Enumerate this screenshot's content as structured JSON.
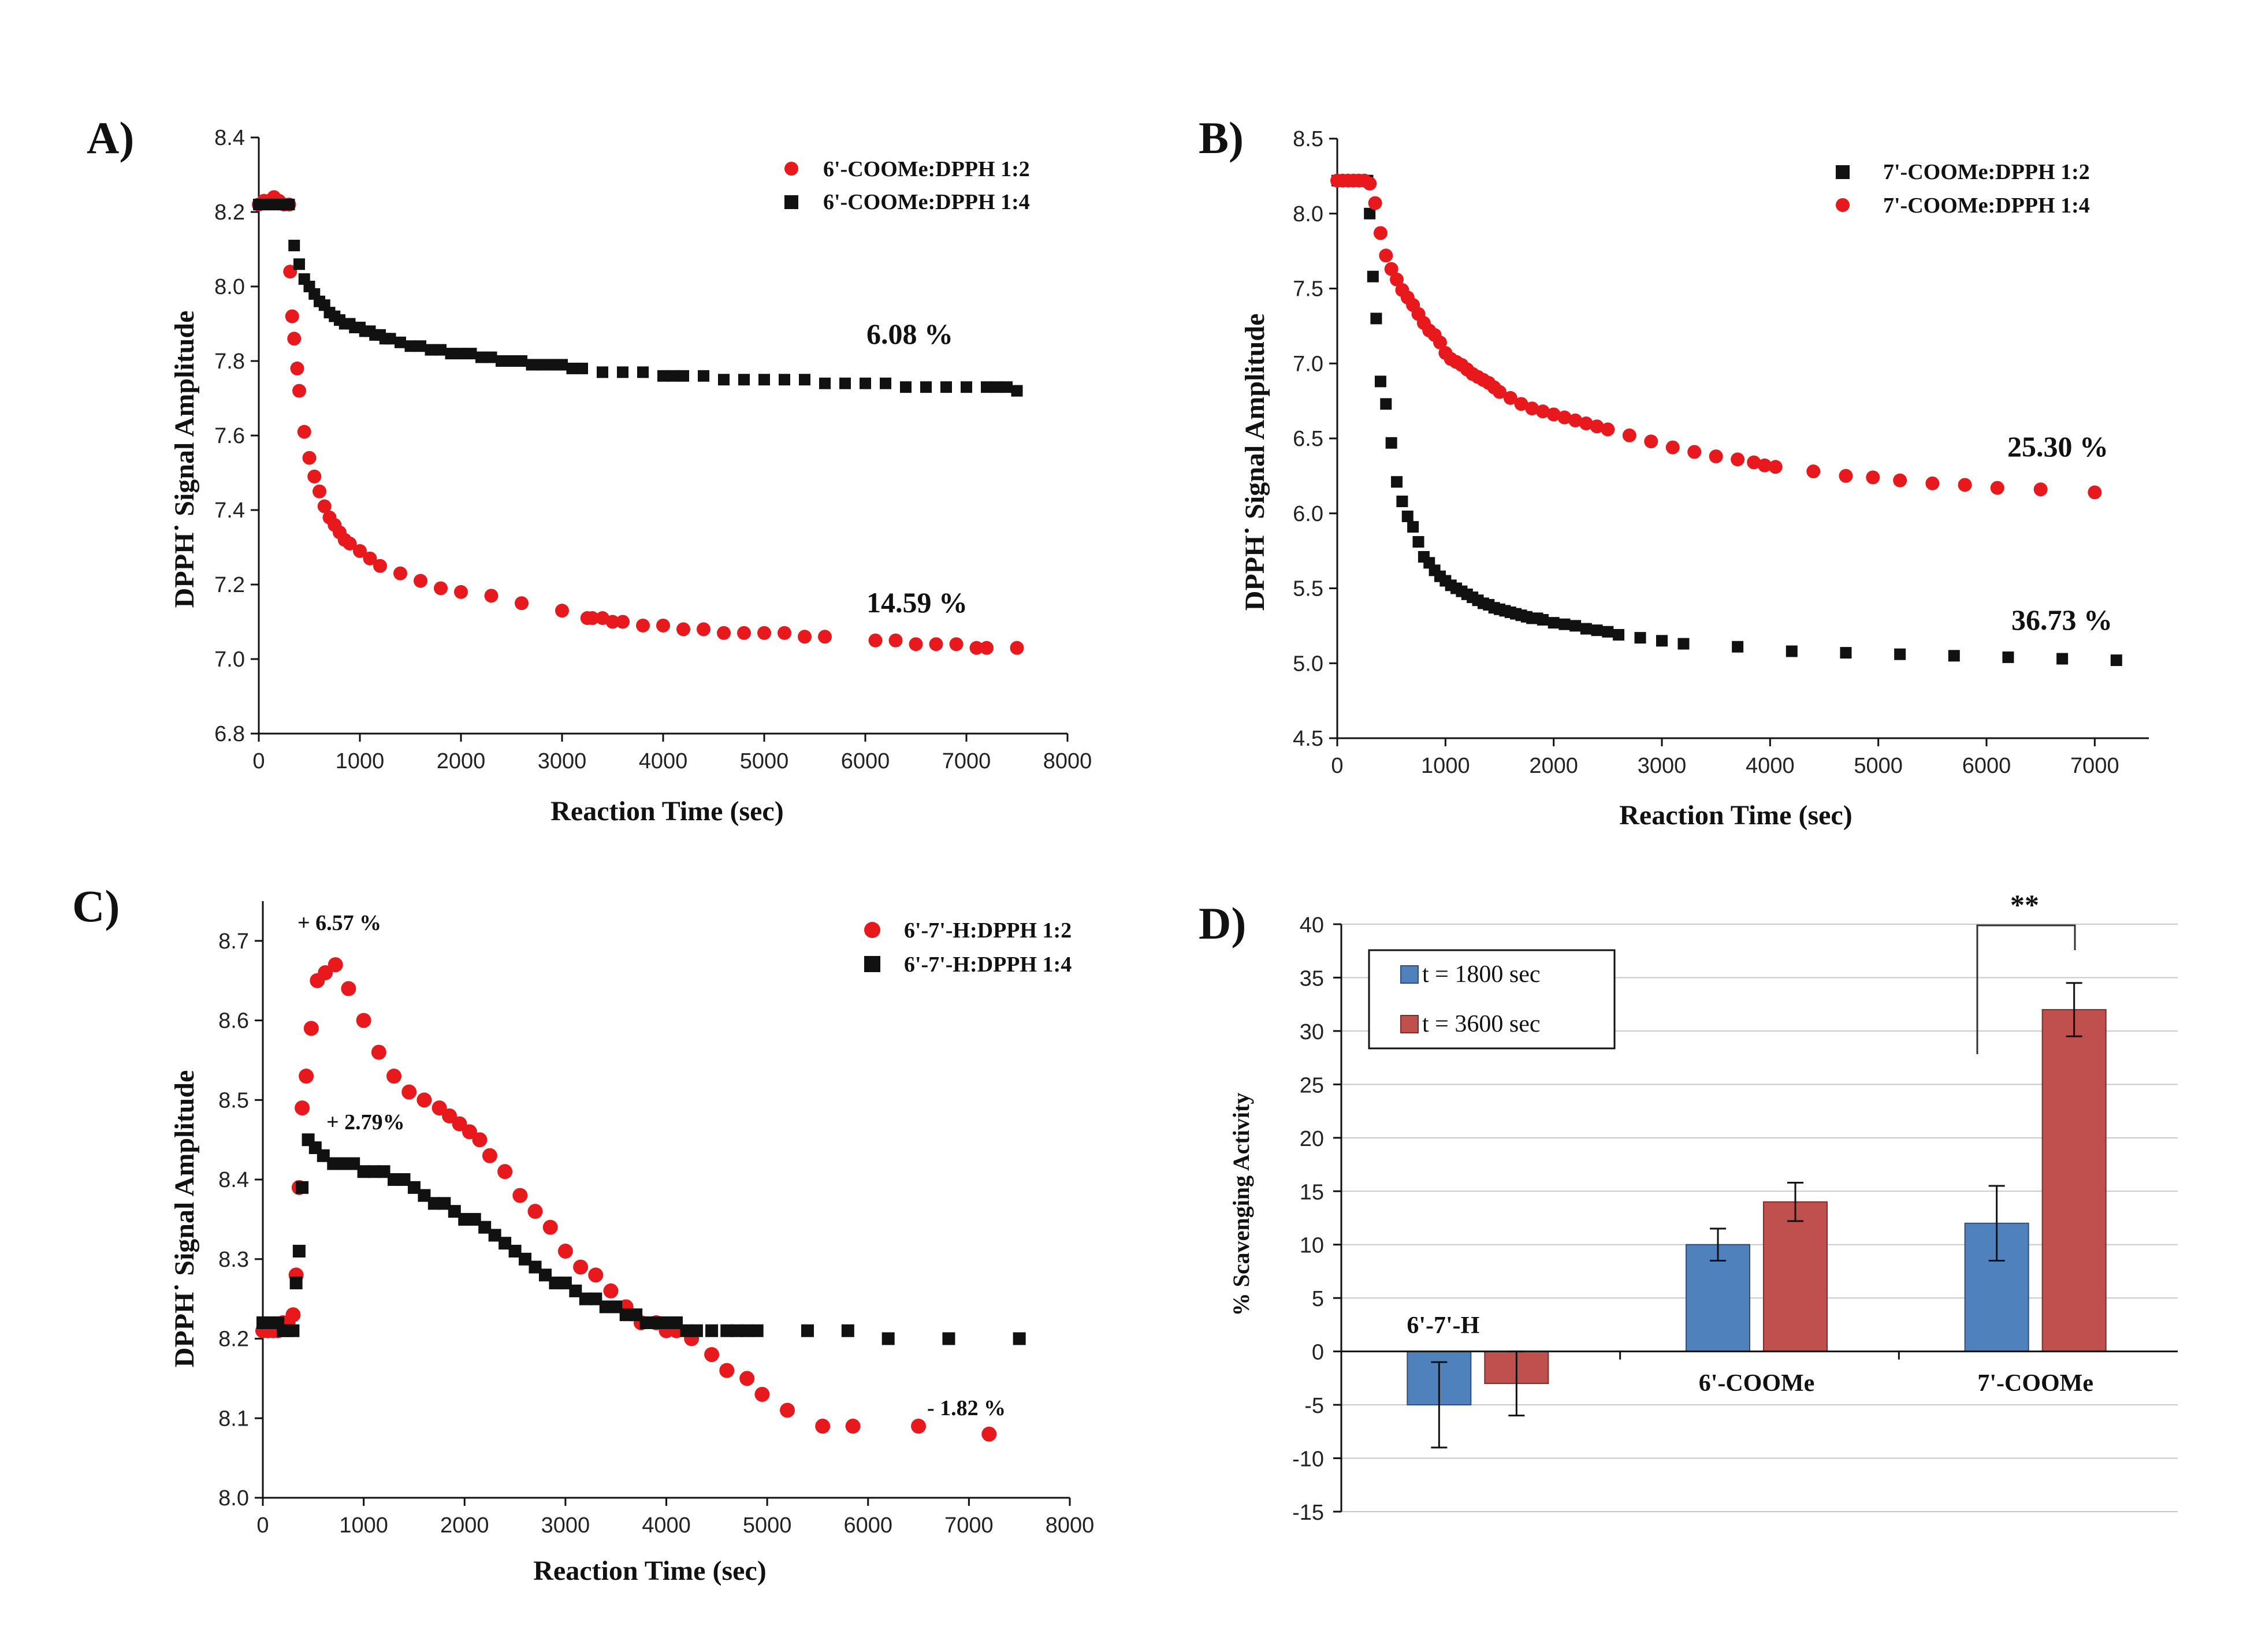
{
  "chart_data": [
    {
      "type": "scatter",
      "panel_label": "A)",
      "xlabel": "Reaction Time (sec)",
      "ylabel": "DPPH˙ Signal Amplitude",
      "xlim": [
        0,
        8000
      ],
      "ylim": [
        6.8,
        8.4
      ],
      "xticks": [
        0,
        1000,
        2000,
        3000,
        4000,
        5000,
        6000,
        7000,
        8000
      ],
      "yticks": [
        6.8,
        7.0,
        7.2,
        7.4,
        7.6,
        7.8,
        8.0,
        8.2,
        8.4
      ],
      "series": [
        {
          "name": "6'-COOMe:DPPH 1:2",
          "marker": "circle",
          "color": "#e8191c",
          "x": [
            0,
            50,
            100,
            150,
            200,
            250,
            300,
            310,
            330,
            350,
            380,
            400,
            450,
            500,
            550,
            600,
            650,
            700,
            750,
            800,
            850,
            900,
            1000,
            1100,
            1200,
            1400,
            1600,
            1800,
            2000,
            2300,
            2600,
            3000,
            3250,
            3300,
            3400,
            3500,
            3600,
            3800,
            4000,
            4200,
            4400,
            4600,
            4800,
            5000,
            5200,
            5400,
            5600,
            6100,
            6300,
            6500,
            6700,
            6900,
            7100,
            7200,
            7500
          ],
          "values": [
            8.22,
            8.23,
            8.23,
            8.24,
            8.23,
            8.22,
            8.22,
            8.04,
            7.92,
            7.86,
            7.78,
            7.72,
            7.61,
            7.54,
            7.49,
            7.45,
            7.41,
            7.38,
            7.36,
            7.34,
            7.32,
            7.31,
            7.29,
            7.27,
            7.25,
            7.23,
            7.21,
            7.19,
            7.18,
            7.17,
            7.15,
            7.13,
            7.11,
            7.11,
            7.11,
            7.1,
            7.1,
            7.09,
            7.09,
            7.08,
            7.08,
            7.07,
            7.07,
            7.07,
            7.07,
            7.06,
            7.06,
            7.05,
            7.05,
            7.04,
            7.04,
            7.04,
            7.03,
            7.03,
            7.03
          ]
        },
        {
          "name": "6'-COOMe:DPPH 1:4",
          "marker": "square",
          "color": "#111111",
          "x": [
            0,
            50,
            100,
            150,
            200,
            250,
            300,
            350,
            400,
            450,
            500,
            550,
            600,
            650,
            700,
            750,
            800,
            850,
            900,
            950,
            1000,
            1050,
            1100,
            1150,
            1200,
            1250,
            1300,
            1400,
            1500,
            1600,
            1700,
            1800,
            1900,
            2000,
            2100,
            2200,
            2300,
            2400,
            2500,
            2600,
            2700,
            2800,
            2900,
            3000,
            3100,
            3200,
            3400,
            3600,
            3800,
            4000,
            4100,
            4200,
            4400,
            4600,
            4800,
            5000,
            5200,
            5400,
            5600,
            5800,
            6000,
            6200,
            6400,
            6600,
            6800,
            7000,
            7200,
            7300,
            7400,
            7500
          ],
          "values": [
            8.22,
            8.22,
            8.22,
            8.22,
            8.22,
            8.22,
            8.22,
            8.11,
            8.06,
            8.02,
            8.0,
            7.98,
            7.96,
            7.95,
            7.93,
            7.92,
            7.91,
            7.9,
            7.9,
            7.89,
            7.89,
            7.88,
            7.88,
            7.87,
            7.87,
            7.86,
            7.86,
            7.85,
            7.84,
            7.84,
            7.83,
            7.83,
            7.82,
            7.82,
            7.82,
            7.81,
            7.81,
            7.8,
            7.8,
            7.8,
            7.79,
            7.79,
            7.79,
            7.79,
            7.78,
            7.78,
            7.77,
            7.77,
            7.77,
            7.76,
            7.76,
            7.76,
            7.76,
            7.75,
            7.75,
            7.75,
            7.75,
            7.75,
            7.74,
            7.74,
            7.74,
            7.74,
            7.73,
            7.73,
            7.73,
            7.73,
            7.73,
            7.73,
            7.73,
            7.72
          ]
        }
      ],
      "annotations": [
        "6.08 %",
        "14.59 %"
      ],
      "legend": "top-right"
    },
    {
      "type": "scatter",
      "panel_label": "B)",
      "xlabel": "Reaction Time (sec)",
      "ylabel": "DPPH˙ Signal Amplitude",
      "xlim": [
        0,
        7500
      ],
      "ylim": [
        4.5,
        8.5
      ],
      "xticks": [
        0,
        1000,
        2000,
        3000,
        4000,
        5000,
        6000,
        7000
      ],
      "yticks": [
        4.5,
        5.0,
        5.5,
        6.0,
        6.5,
        7.0,
        7.5,
        8.0,
        8.5
      ],
      "series": [
        {
          "name": "7'-COOMe:DPPH 1:2",
          "marker": "square",
          "color": "#111111",
          "x": [
            0,
            50,
            100,
            150,
            200,
            250,
            280,
            300,
            330,
            360,
            400,
            450,
            500,
            550,
            600,
            650,
            700,
            750,
            800,
            850,
            900,
            950,
            1000,
            1050,
            1100,
            1150,
            1200,
            1250,
            1300,
            1350,
            1400,
            1450,
            1500,
            1550,
            1600,
            1650,
            1700,
            1750,
            1800,
            1850,
            1900,
            2000,
            2100,
            2200,
            2300,
            2400,
            2500,
            2600,
            2800,
            3000,
            3200,
            3700,
            4200,
            4700,
            5200,
            5700,
            6200,
            6700,
            7200
          ],
          "values": [
            8.22,
            8.22,
            8.22,
            8.22,
            8.22,
            8.22,
            8.22,
            8.0,
            7.58,
            7.3,
            6.88,
            6.73,
            6.47,
            6.21,
            6.08,
            5.98,
            5.91,
            5.81,
            5.71,
            5.67,
            5.62,
            5.58,
            5.55,
            5.52,
            5.5,
            5.48,
            5.46,
            5.44,
            5.42,
            5.4,
            5.39,
            5.37,
            5.36,
            5.35,
            5.34,
            5.33,
            5.32,
            5.31,
            5.3,
            5.3,
            5.29,
            5.27,
            5.26,
            5.25,
            5.23,
            5.22,
            5.21,
            5.19,
            5.17,
            5.15,
            5.13,
            5.11,
            5.08,
            5.07,
            5.06,
            5.05,
            5.04,
            5.03,
            5.02
          ]
        },
        {
          "name": "7'-COOMe:DPPH 1:4",
          "marker": "circle",
          "color": "#e8191c",
          "x": [
            0,
            50,
            100,
            150,
            200,
            250,
            300,
            350,
            400,
            450,
            500,
            550,
            600,
            650,
            700,
            750,
            800,
            850,
            900,
            950,
            1000,
            1050,
            1100,
            1150,
            1200,
            1250,
            1300,
            1350,
            1400,
            1450,
            1500,
            1600,
            1700,
            1800,
            1900,
            2000,
            2100,
            2200,
            2300,
            2400,
            2500,
            2700,
            2900,
            3100,
            3300,
            3500,
            3700,
            3850,
            3950,
            4050,
            4400,
            4700,
            4950,
            5200,
            5500,
            5800,
            6100,
            6500,
            7000
          ],
          "values": [
            8.22,
            8.22,
            8.22,
            8.22,
            8.22,
            8.22,
            8.2,
            8.07,
            7.87,
            7.72,
            7.63,
            7.56,
            7.49,
            7.44,
            7.39,
            7.33,
            7.27,
            7.22,
            7.19,
            7.14,
            7.07,
            7.03,
            7.01,
            6.99,
            6.96,
            6.93,
            6.91,
            6.89,
            6.87,
            6.84,
            6.81,
            6.77,
            6.73,
            6.7,
            6.68,
            6.66,
            6.64,
            6.62,
            6.6,
            6.58,
            6.56,
            6.52,
            6.48,
            6.44,
            6.41,
            6.38,
            6.36,
            6.34,
            6.32,
            6.31,
            6.28,
            6.25,
            6.24,
            6.22,
            6.2,
            6.19,
            6.17,
            6.16,
            6.14
          ]
        }
      ],
      "annotations": [
        "25.30 %",
        "36.73 %"
      ],
      "legend": "top-right"
    },
    {
      "type": "scatter",
      "panel_label": "C)",
      "xlabel": "Reaction Time (sec)",
      "ylabel": "DPPH˙ Signal Amplitude",
      "xlim": [
        0,
        8000
      ],
      "ylim": [
        8.0,
        8.75
      ],
      "xticks": [
        0,
        1000,
        2000,
        3000,
        4000,
        5000,
        6000,
        7000,
        8000
      ],
      "yticks": [
        8.0,
        8.1,
        8.2,
        8.3,
        8.4,
        8.5,
        8.6,
        8.7
      ],
      "series": [
        {
          "name": "6'-7'-H:DPPH 1:2",
          "marker": "circle",
          "color": "#e8191c",
          "x": [
            0,
            50,
            100,
            150,
            200,
            250,
            300,
            330,
            360,
            390,
            430,
            480,
            540,
            620,
            720,
            850,
            1000,
            1150,
            1300,
            1450,
            1600,
            1750,
            1850,
            1950,
            2050,
            2150,
            2250,
            2400,
            2550,
            2700,
            2850,
            3000,
            3150,
            3300,
            3450,
            3600,
            3750,
            3900,
            4000,
            4100,
            4250,
            4450,
            4600,
            4800,
            4950,
            5200,
            5550,
            5850,
            6500,
            7200
          ],
          "values": [
            8.21,
            8.21,
            8.21,
            8.21,
            8.22,
            8.22,
            8.23,
            8.28,
            8.39,
            8.49,
            8.53,
            8.59,
            8.65,
            8.66,
            8.67,
            8.64,
            8.6,
            8.56,
            8.53,
            8.51,
            8.5,
            8.49,
            8.48,
            8.47,
            8.46,
            8.45,
            8.43,
            8.41,
            8.38,
            8.36,
            8.34,
            8.31,
            8.29,
            8.28,
            8.26,
            8.24,
            8.22,
            8.22,
            8.21,
            8.21,
            8.2,
            8.18,
            8.16,
            8.15,
            8.13,
            8.11,
            8.09,
            8.09,
            8.09,
            8.08
          ]
        },
        {
          "name": "6'-7'-H:DPPH 1:4",
          "marker": "square",
          "color": "#111111",
          "x": [
            0,
            50,
            100,
            150,
            200,
            250,
            300,
            330,
            360,
            390,
            450,
            520,
            600,
            700,
            800,
            900,
            1000,
            1100,
            1200,
            1300,
            1400,
            1500,
            1600,
            1700,
            1800,
            1900,
            2000,
            2100,
            2200,
            2300,
            2400,
            2500,
            2600,
            2700,
            2800,
            2900,
            3000,
            3100,
            3200,
            3300,
            3400,
            3500,
            3600,
            3700,
            3800,
            3900,
            4000,
            4100,
            4200,
            4300,
            4450,
            4600,
            4700,
            4800,
            4900,
            5400,
            5800,
            6200,
            6800,
            7500
          ],
          "values": [
            8.22,
            8.22,
            8.22,
            8.22,
            8.21,
            8.21,
            8.21,
            8.27,
            8.31,
            8.39,
            8.45,
            8.44,
            8.43,
            8.42,
            8.42,
            8.42,
            8.41,
            8.41,
            8.41,
            8.4,
            8.4,
            8.39,
            8.38,
            8.37,
            8.37,
            8.36,
            8.35,
            8.35,
            8.34,
            8.33,
            8.32,
            8.31,
            8.3,
            8.29,
            8.28,
            8.27,
            8.27,
            8.26,
            8.25,
            8.25,
            8.24,
            8.24,
            8.23,
            8.23,
            8.22,
            8.22,
            8.22,
            8.22,
            8.21,
            8.21,
            8.21,
            8.21,
            8.21,
            8.21,
            8.21,
            8.21,
            8.21,
            8.2,
            8.2,
            8.2
          ]
        }
      ],
      "annotations": [
        "+ 6.57 %",
        "+ 2.79%",
        "- 1.82 %"
      ],
      "legend": "top-right"
    },
    {
      "type": "bar",
      "panel_label": "D)",
      "ylabel": "% Scavenging Activity",
      "ylim": [
        -15,
        40
      ],
      "yticks": [
        -15,
        -10,
        -5,
        0,
        5,
        10,
        15,
        20,
        25,
        30,
        35,
        40
      ],
      "categories": [
        "6'-7'-H",
        "6'-COOMe",
        "7'-COOMe"
      ],
      "series": [
        {
          "name": "t = 1800 sec",
          "color": "#4f81bd",
          "values": [
            -5,
            10,
            12
          ],
          "errors": [
            4,
            1.5,
            3.5
          ]
        },
        {
          "name": "t = 3600 sec",
          "color": "#c0504d",
          "values": [
            -3,
            14,
            32
          ],
          "errors": [
            3,
            1.8,
            2.5
          ]
        }
      ],
      "significance": "**",
      "grid": true,
      "legend": "top-left"
    }
  ]
}
